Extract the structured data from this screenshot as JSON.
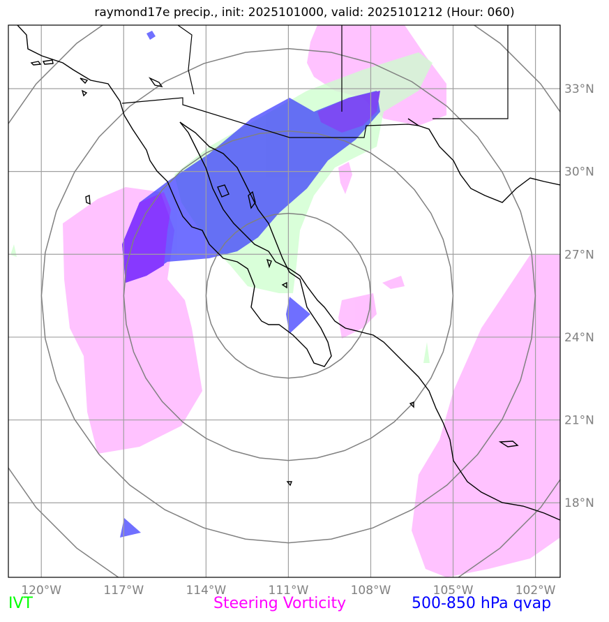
{
  "title": "raymond17e precip., init: 2025101000, valid: 2025101212 (Hour: 060)",
  "map": {
    "lon_range": [
      -121.2,
      -101.1
    ],
    "lat_range": [
      15.3,
      35.3
    ],
    "lon_ticks": [
      {
        "value": -120,
        "label": "120°W"
      },
      {
        "value": -117,
        "label": "117°W"
      },
      {
        "value": -114,
        "label": "114°W"
      },
      {
        "value": -111,
        "label": "111°W"
      },
      {
        "value": -108,
        "label": "108°W"
      },
      {
        "value": -105,
        "label": "105°W"
      },
      {
        "value": -102,
        "label": "102°W"
      }
    ],
    "lat_ticks": [
      {
        "value": 18,
        "label": "18°N"
      },
      {
        "value": 21,
        "label": "21°N"
      },
      {
        "value": 24,
        "label": "24°N"
      },
      {
        "value": 27,
        "label": "27°N"
      },
      {
        "value": 30,
        "label": "30°N"
      },
      {
        "value": 33,
        "label": "33°N"
      }
    ],
    "range_rings_center": {
      "lon": -111,
      "lat": 25.5
    },
    "grid": true
  },
  "legend": {
    "ivt": {
      "label": "IVT",
      "color": "#00ff00"
    },
    "vorticity": {
      "label": "Steering Vorticity",
      "color": "#ff00ff"
    },
    "qvap": {
      "label": "500-850 hPa qvap",
      "color": "#0000ff"
    }
  },
  "colors": {
    "ivt_fill": "#ccffcc",
    "vorticity_fill": "#ff99ff",
    "qvap_fill": "#3333ff",
    "qvap_dark": "#5500ff",
    "coast": "#000000",
    "grid": "#a0a0a0",
    "rings": "#808080"
  }
}
